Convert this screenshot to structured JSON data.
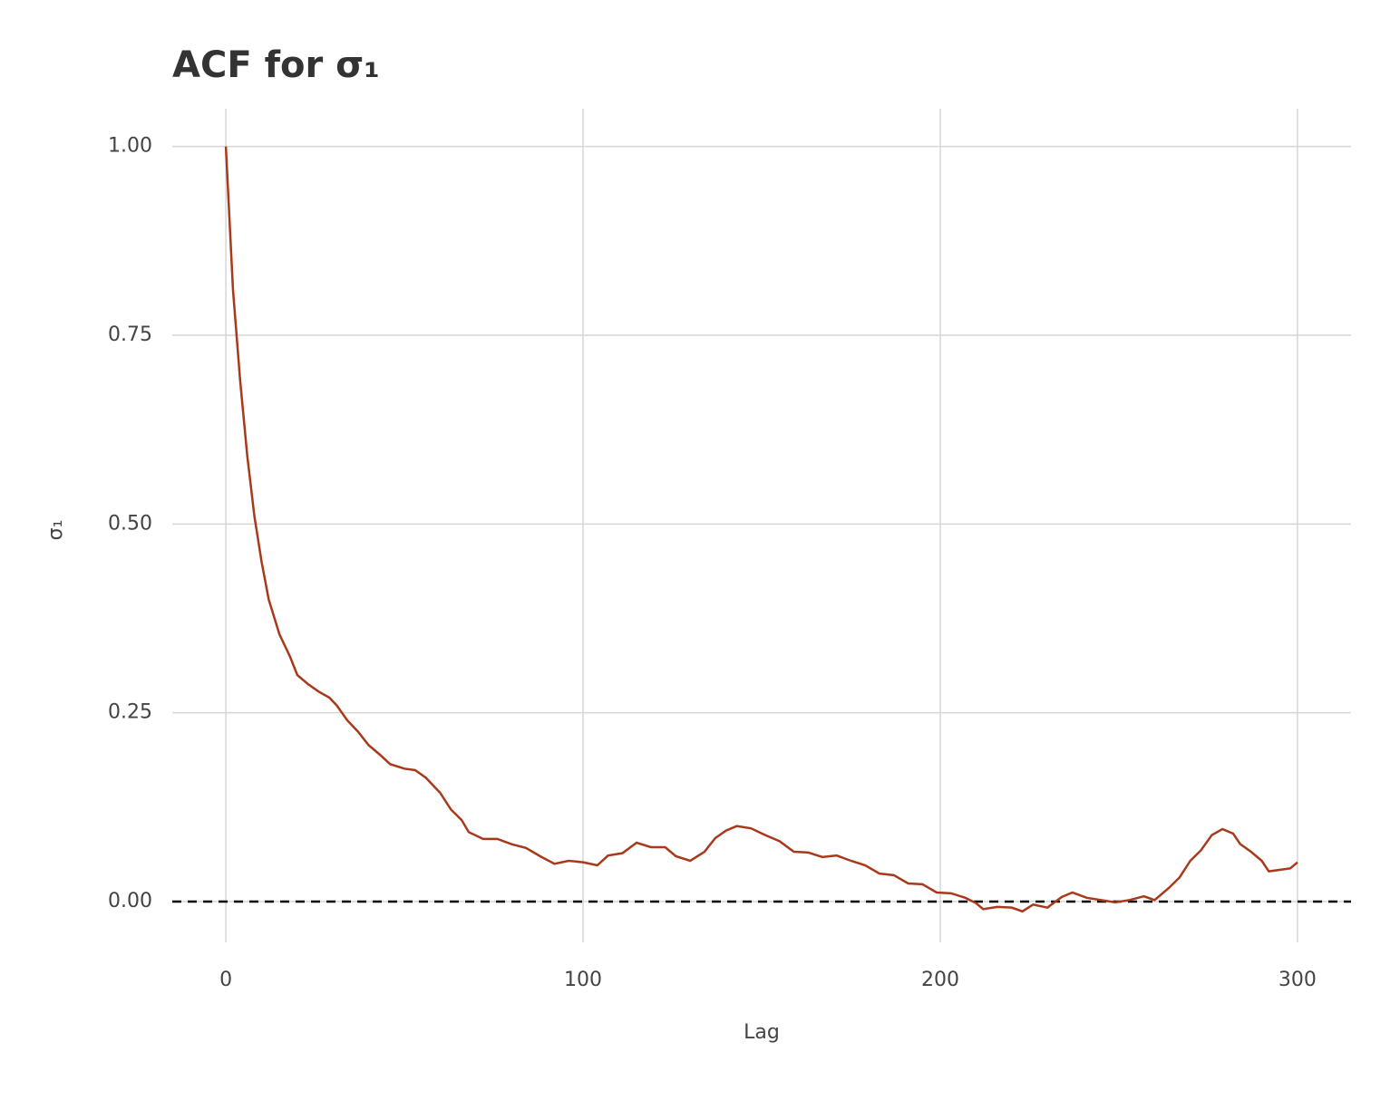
{
  "chart_data": {
    "type": "line",
    "title": "ACF for σ₁",
    "x_label": "Lag",
    "y_label": "σ₁",
    "x": [
      0,
      2,
      4,
      6,
      8,
      10,
      12,
      15,
      18,
      20,
      23,
      26,
      29,
      31,
      34,
      37,
      40,
      43,
      46,
      50,
      53,
      56,
      60,
      63,
      66,
      68,
      72,
      76,
      80,
      84,
      88,
      92,
      96,
      100,
      104,
      107,
      111,
      115,
      119,
      123,
      126,
      130,
      134,
      137,
      140,
      143,
      147,
      151,
      155,
      159,
      163,
      167,
      171,
      175,
      179,
      183,
      187,
      191,
      195,
      199,
      203,
      207,
      210,
      212,
      216,
      220,
      223,
      226,
      230,
      234,
      237,
      241,
      245,
      249,
      253,
      257,
      260,
      264,
      267,
      270,
      273,
      276,
      279,
      282,
      284,
      287,
      290,
      292,
      295,
      298,
      300
    ],
    "series": [
      {
        "name": "σ₁",
        "color": "#a8391a",
        "values": [
          1.0,
          0.81,
          0.69,
          0.59,
          0.51,
          0.45,
          0.4,
          0.354,
          0.324,
          0.3,
          0.288,
          0.278,
          0.27,
          0.26,
          0.24,
          0.225,
          0.207,
          0.195,
          0.182,
          0.176,
          0.174,
          0.164,
          0.144,
          0.122,
          0.108,
          0.092,
          0.083,
          0.083,
          0.076,
          0.071,
          0.06,
          0.05,
          0.054,
          0.052,
          0.048,
          0.061,
          0.064,
          0.078,
          0.072,
          0.072,
          0.06,
          0.054,
          0.066,
          0.084,
          0.094,
          0.1,
          0.097,
          0.088,
          0.08,
          0.066,
          0.065,
          0.059,
          0.061,
          0.054,
          0.048,
          0.037,
          0.035,
          0.024,
          0.023,
          0.012,
          0.011,
          0.005,
          -0.002,
          -0.01,
          -0.007,
          -0.008,
          -0.013,
          -0.004,
          -0.008,
          0.006,
          0.012,
          0.005,
          0.002,
          -0.001,
          0.002,
          0.007,
          0.002,
          0.018,
          0.032,
          0.054,
          0.068,
          0.088,
          0.096,
          0.09,
          0.076,
          0.066,
          0.054,
          0.04,
          0.042,
          0.044,
          0.052
        ]
      }
    ],
    "reference_line": 0,
    "xlim": [
      -15,
      315
    ],
    "xticks": [
      0,
      100,
      200,
      300
    ],
    "ylim": [
      -0.054,
      1.05
    ],
    "yticks": [
      {
        "value": 0,
        "label": "0.00"
      },
      {
        "value": 0.25,
        "label": "0.25"
      },
      {
        "value": 0.5,
        "label": "0.50"
      },
      {
        "value": 0.75,
        "label": "0.75"
      },
      {
        "value": 1,
        "label": "1.00"
      }
    ],
    "grid": true
  }
}
